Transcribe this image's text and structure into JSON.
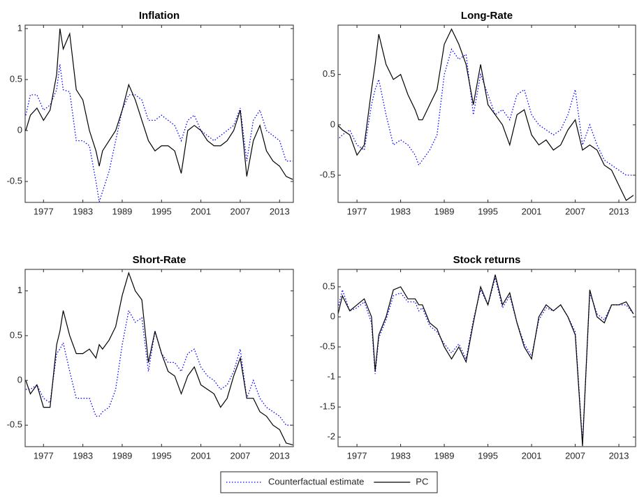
{
  "chart_data": [
    {
      "type": "line",
      "title": "Inflation",
      "x": [
        1974.3,
        1975,
        1976,
        1977,
        1978,
        1979,
        1979.5,
        1980,
        1981,
        1982,
        1983,
        1984,
        1985,
        1985.5,
        1986,
        1987,
        1988,
        1989,
        1990,
        1991,
        1992,
        1993,
        1994,
        1995,
        1996,
        1997,
        1998,
        1999,
        2000,
        2001,
        2002,
        2003,
        2004,
        2005,
        2006,
        2007,
        2008,
        2009,
        2010,
        2011,
        2012,
        2013,
        2014,
        2015
      ],
      "series": [
        {
          "name": "Counterfactual estimate",
          "color": "#0000ff",
          "linestyle": "dotted",
          "values": [
            0.15,
            0.35,
            0.35,
            0.2,
            0.25,
            0.4,
            0.65,
            0.4,
            0.38,
            -0.1,
            -0.1,
            -0.15,
            -0.5,
            -0.7,
            -0.6,
            -0.4,
            -0.1,
            0.2,
            0.35,
            0.35,
            0.3,
            0.1,
            0.1,
            0.15,
            0.1,
            0.05,
            -0.1,
            0.1,
            0.15,
            0.0,
            -0.05,
            -0.1,
            -0.05,
            0.0,
            0.05,
            0.22,
            -0.3,
            0.1,
            0.2,
            0.0,
            -0.05,
            -0.1,
            -0.3,
            -0.3
          ]
        },
        {
          "name": "PC",
          "color": "#000000",
          "linestyle": "solid",
          "values": [
            0,
            0.15,
            0.22,
            0.1,
            0.2,
            0.55,
            1.0,
            0.8,
            0.95,
            0.4,
            0.3,
            0.0,
            -0.2,
            -0.35,
            -0.2,
            -0.1,
            0.0,
            0.2,
            0.45,
            0.3,
            0.1,
            -0.1,
            -0.2,
            -0.15,
            -0.15,
            -0.2,
            -0.42,
            0.0,
            0.05,
            0.0,
            -0.1,
            -0.15,
            -0.15,
            -0.1,
            0.0,
            0.2,
            -0.45,
            -0.1,
            0.05,
            -0.2,
            -0.3,
            -0.35,
            -0.45,
            -0.48
          ]
        }
      ],
      "xlim": [
        1974.2,
        2015.1
      ],
      "xticks": [
        1977,
        1983,
        1989,
        1995,
        2001,
        2007,
        2013
      ],
      "ylim": [
        -0.705,
        1.034
      ],
      "yticks": [
        -0.5,
        0,
        0.5,
        1
      ]
    },
    {
      "type": "line",
      "title": "Long-Rate",
      "x": [
        1974.3,
        1975,
        1976,
        1977,
        1978,
        1979,
        1979.5,
        1980,
        1981,
        1982,
        1983,
        1984,
        1985,
        1985.5,
        1986,
        1987,
        1988,
        1989,
        1990,
        1991,
        1992,
        1993,
        1994,
        1995,
        1996,
        1997,
        1998,
        1999,
        2000,
        2001,
        2002,
        2003,
        2004,
        2005,
        2006,
        2007,
        2008,
        2009,
        2010,
        2011,
        2012,
        2013,
        2014,
        2015
      ],
      "series": [
        {
          "color": "#0000ff",
          "linestyle": "dotted",
          "values": [
            -0.15,
            -0.1,
            -0.05,
            -0.2,
            -0.25,
            0.2,
            0.35,
            0.45,
            0.1,
            -0.2,
            -0.15,
            -0.2,
            -0.3,
            -0.4,
            -0.35,
            -0.25,
            -0.1,
            0.5,
            0.75,
            0.65,
            0.7,
            0.1,
            0.5,
            0.3,
            0.1,
            0.15,
            0.05,
            0.3,
            0.35,
            0.1,
            0.0,
            -0.05,
            -0.1,
            -0.05,
            0.1,
            0.35,
            -0.2,
            0.0,
            -0.2,
            -0.35,
            -0.4,
            -0.45,
            -0.5,
            -0.5
          ]
        },
        {
          "color": "#000000",
          "linestyle": "solid",
          "values": [
            0,
            -0.05,
            -0.1,
            -0.3,
            -0.2,
            0.35,
            0.6,
            0.9,
            0.6,
            0.45,
            0.5,
            0.3,
            0.15,
            0.05,
            0.05,
            0.2,
            0.35,
            0.8,
            0.95,
            0.8,
            0.6,
            0.2,
            0.6,
            0.2,
            0.1,
            0.0,
            -0.2,
            0.1,
            0.15,
            -0.1,
            -0.2,
            -0.15,
            -0.25,
            -0.2,
            -0.05,
            0.05,
            -0.25,
            -0.2,
            -0.25,
            -0.4,
            -0.45,
            -0.6,
            -0.75,
            -0.7
          ]
        }
      ],
      "xlim": [
        1974.4,
        2015.3
      ],
      "xticks": [
        1977,
        1983,
        1989,
        1995,
        2001,
        2007,
        2013
      ],
      "ylim": [
        -0.77,
        0.99
      ],
      "yticks": [
        -0.5,
        0,
        0.5
      ]
    },
    {
      "type": "line",
      "title": "Short-Rate",
      "x": [
        1974.3,
        1975,
        1976,
        1977,
        1978,
        1979,
        1979.5,
        1980,
        1981,
        1982,
        1983,
        1984,
        1985,
        1985.5,
        1986,
        1987,
        1988,
        1989,
        1990,
        1991,
        1992,
        1993,
        1994,
        1995,
        1996,
        1997,
        1998,
        1999,
        2000,
        2001,
        2002,
        2003,
        2004,
        2005,
        2006,
        2007,
        2008,
        2009,
        2010,
        2011,
        2012,
        2013,
        2014,
        2015
      ],
      "series": [
        {
          "color": "#0000ff",
          "linestyle": "dotted",
          "values": [
            -0.1,
            -0.1,
            -0.05,
            -0.2,
            -0.25,
            0.3,
            0.35,
            0.42,
            0.1,
            -0.2,
            -0.2,
            -0.2,
            -0.4,
            -0.4,
            -0.35,
            -0.3,
            -0.1,
            0.4,
            0.78,
            0.65,
            0.7,
            0.1,
            0.55,
            0.3,
            0.2,
            0.2,
            0.1,
            0.3,
            0.35,
            0.15,
            0.05,
            0.0,
            -0.1,
            -0.05,
            0.1,
            0.35,
            -0.2,
            0.0,
            -0.2,
            -0.3,
            -0.35,
            -0.4,
            -0.5,
            -0.5
          ]
        },
        {
          "color": "#000000",
          "linestyle": "solid",
          "values": [
            0,
            -0.15,
            -0.05,
            -0.3,
            -0.3,
            0.4,
            0.55,
            0.78,
            0.5,
            0.3,
            0.3,
            0.35,
            0.25,
            0.4,
            0.35,
            0.45,
            0.6,
            0.95,
            1.2,
            1.0,
            0.9,
            0.2,
            0.55,
            0.3,
            0.1,
            0.05,
            -0.15,
            0.05,
            0.15,
            -0.05,
            -0.1,
            -0.15,
            -0.3,
            -0.2,
            0.05,
            0.25,
            -0.2,
            -0.2,
            -0.35,
            -0.4,
            -0.5,
            -0.55,
            -0.7,
            -0.72
          ]
        }
      ],
      "xlim": [
        1974.2,
        2015.1
      ],
      "xticks": [
        1977,
        1983,
        1989,
        1995,
        2001,
        2007,
        2013
      ],
      "ylim": [
        -0.74,
        1.24
      ],
      "yticks": [
        -0.5,
        0,
        0.5,
        1
      ]
    },
    {
      "type": "line",
      "title": "Stock returns",
      "x": [
        1974.3,
        1975,
        1976,
        1977,
        1978,
        1979,
        1979.5,
        1980,
        1981,
        1982,
        1983,
        1984,
        1985,
        1985.5,
        1986,
        1987,
        1988,
        1989,
        1990,
        1991,
        1992,
        1993,
        1994,
        1995,
        1996,
        1997,
        1998,
        1999,
        2000,
        2001,
        2002,
        2003,
        2004,
        2005,
        2006,
        2007,
        2008,
        2009,
        2010,
        2011,
        2012,
        2013,
        2014,
        2015
      ],
      "series": [
        {
          "color": "#0000ff",
          "linestyle": "dotted",
          "values": [
            0.1,
            0.45,
            0.1,
            0.15,
            0.25,
            -0.1,
            -0.95,
            -0.35,
            -0.05,
            0.35,
            0.4,
            0.25,
            0.25,
            0.1,
            0.15,
            -0.15,
            -0.25,
            -0.45,
            -0.6,
            -0.45,
            -0.7,
            -0.05,
            0.45,
            0.2,
            0.65,
            0.15,
            0.35,
            -0.1,
            -0.45,
            -0.65,
            -0.05,
            0.15,
            0.1,
            0.2,
            0.0,
            -0.25,
            -2.1,
            0.4,
            0.05,
            -0.05,
            0.2,
            0.2,
            0.2,
            0.05
          ]
        },
        {
          "color": "#000000",
          "linestyle": "solid",
          "values": [
            0.0,
            0.35,
            0.1,
            0.2,
            0.3,
            0.0,
            -0.9,
            -0.3,
            0.0,
            0.45,
            0.5,
            0.3,
            0.3,
            0.2,
            0.2,
            -0.1,
            -0.2,
            -0.5,
            -0.7,
            -0.5,
            -0.75,
            -0.1,
            0.5,
            0.2,
            0.7,
            0.2,
            0.4,
            -0.1,
            -0.5,
            -0.7,
            0.0,
            0.2,
            0.1,
            0.2,
            0.0,
            -0.3,
            -2.15,
            0.45,
            0.0,
            -0.1,
            0.2,
            0.2,
            0.25,
            0.05
          ]
        }
      ],
      "xlim": [
        1974.4,
        2015.3
      ],
      "xticks": [
        1977,
        1983,
        1989,
        1995,
        2001,
        2007,
        2013
      ],
      "ylim": [
        -2.16,
        0.79
      ],
      "yticks": [
        -2,
        -1.5,
        -1,
        -0.5,
        0,
        0.5
      ]
    }
  ]
}
